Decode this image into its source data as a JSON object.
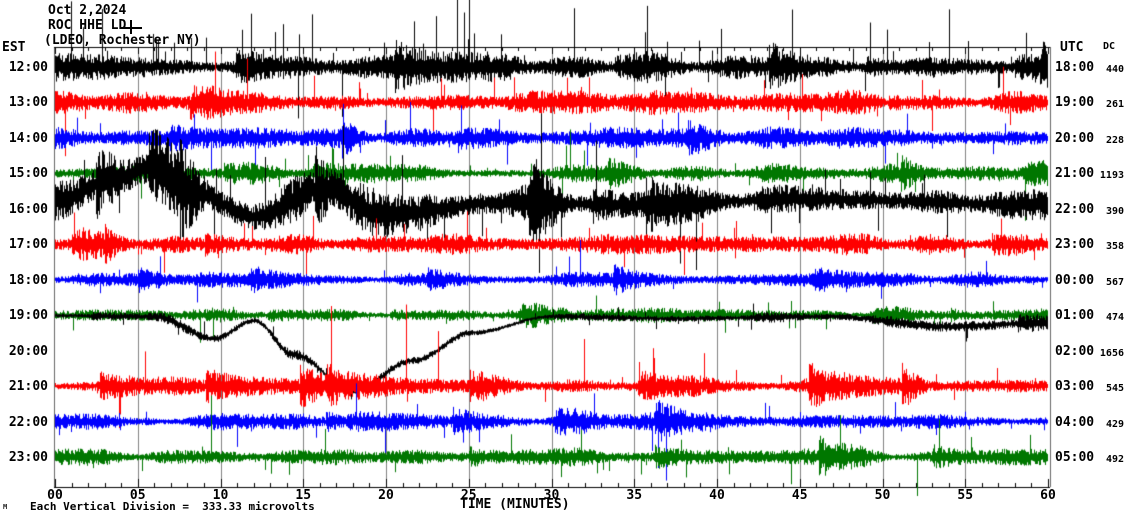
{
  "header": {
    "date": "Oct 2,2024",
    "station": "ROC HHE LD",
    "location": "(LDEO, Rochester NY)"
  },
  "axes": {
    "left_tz": "EST",
    "right_tz": "UTC",
    "dc_header": "DC",
    "x_title": "TIME (MINUTES)",
    "x_tick_labels": [
      "00",
      "05",
      "10",
      "15",
      "20",
      "25",
      "30",
      "35",
      "40",
      "45",
      "50",
      "55",
      "60"
    ],
    "footer": "Each Vertical Division =  333.33 microvolts",
    "corner_mark": "M"
  },
  "colors": {
    "black": "#000000",
    "red": "#ff0000",
    "blue": "#0000ff",
    "green": "#007700",
    "grid": "#808080",
    "axis": "#000000",
    "border": "#666666"
  },
  "rows": [
    {
      "est": "12:00",
      "utc": "18:00",
      "dc": "440",
      "color": "#000000",
      "seed": 11,
      "amp": 13,
      "burstProb": 0.005,
      "burstGain": 1.4,
      "spikeProb": 0.06,
      "spikeMult": 5,
      "upBias": 0.8,
      "drift": [
        [
          0,
          0
        ],
        [
          1,
          0
        ]
      ]
    },
    {
      "est": "13:00",
      "utc": "19:00",
      "dc": "261",
      "color": "#ff0000",
      "seed": 22,
      "amp": 11,
      "burstProb": 0.005,
      "burstGain": 1.2,
      "spikeProb": 0.035,
      "spikeMult": 3.5,
      "upBias": 0.6,
      "drift": [
        [
          0,
          0
        ],
        [
          1,
          0
        ]
      ]
    },
    {
      "est": "14:00",
      "utc": "20:00",
      "dc": "228",
      "color": "#0000ff",
      "seed": 33,
      "amp": 10,
      "burstProb": 0.004,
      "burstGain": 1.1,
      "spikeProb": 0.03,
      "spikeMult": 2.8,
      "upBias": 0.5,
      "drift": [
        [
          0,
          0
        ],
        [
          1,
          0
        ]
      ]
    },
    {
      "est": "15:00",
      "utc": "21:00",
      "dc": "1193",
      "color": "#007700",
      "seed": 44,
      "amp": 9,
      "burstProb": 0.004,
      "burstGain": 1.0,
      "spikeProb": 0.025,
      "spikeMult": 2.6,
      "upBias": 0.5,
      "drift": [
        [
          0,
          0
        ],
        [
          1,
          0
        ]
      ]
    },
    {
      "est": "16:00",
      "utc": "22:00",
      "dc": "390",
      "color": "#000000",
      "seed": 55,
      "amp": 19,
      "burstProb": 0.007,
      "burstGain": 1.7,
      "spikeProb": 0.035,
      "spikeMult": 3.2,
      "upBias": 0.5,
      "drift": [
        [
          0,
          -8
        ],
        [
          0.06,
          -30
        ],
        [
          0.1,
          -42
        ],
        [
          0.14,
          -16
        ],
        [
          0.2,
          8
        ],
        [
          0.27,
          -20
        ],
        [
          0.33,
          6
        ],
        [
          0.45,
          -6
        ],
        [
          0.6,
          -4
        ],
        [
          0.75,
          -10
        ],
        [
          1,
          -4
        ]
      ]
    },
    {
      "est": "17:00",
      "utc": "23:00",
      "dc": "358",
      "color": "#ff0000",
      "seed": 66,
      "amp": 10,
      "burstProb": 0.005,
      "burstGain": 1.2,
      "spikeProb": 0.03,
      "spikeMult": 2.8,
      "upBias": 0.5,
      "drift": [
        [
          0,
          0
        ],
        [
          1,
          0
        ]
      ]
    },
    {
      "est": "18:00",
      "utc": "00:00",
      "dc": "567",
      "color": "#0000ff",
      "seed": 77,
      "amp": 7,
      "burstProb": 0.004,
      "burstGain": 1.1,
      "spikeProb": 0.02,
      "spikeMult": 2.6,
      "upBias": 0.5,
      "drift": [
        [
          0,
          0
        ],
        [
          1,
          0
        ]
      ]
    },
    {
      "est": "19:00",
      "utc": "01:00",
      "dc": "474",
      "color": "#007700",
      "seed": 88,
      "amp": 7,
      "burstProb": 0.004,
      "burstGain": 1.0,
      "spikeProb": 0.02,
      "spikeMult": 2.6,
      "upBias": 0.45,
      "drift": [
        [
          0,
          0
        ],
        [
          1,
          0
        ]
      ]
    },
    {
      "est": "20:00",
      "utc": "02:00",
      "dc": "1656",
      "color": "#000000",
      "seed": 99,
      "amp": 5,
      "burstProb": 0.004,
      "burstGain": 1.4,
      "spikeProb": 0.03,
      "spikeMult": 3.2,
      "upBias": 0.45,
      "drift": [
        [
          0,
          -35
        ],
        [
          0.1,
          -34
        ],
        [
          0.16,
          -12
        ],
        [
          0.2,
          -30
        ],
        [
          0.24,
          4
        ],
        [
          0.3,
          40
        ],
        [
          0.36,
          10
        ],
        [
          0.42,
          -18
        ],
        [
          0.5,
          -34
        ],
        [
          0.62,
          -32
        ],
        [
          0.78,
          -34
        ],
        [
          0.9,
          -24
        ],
        [
          1,
          -28
        ]
      ]
    },
    {
      "est": "21:00",
      "utc": "03:00",
      "dc": "545",
      "color": "#ff0000",
      "seed": 110,
      "amp": 8,
      "burstProb": 0.011,
      "burstGain": 2.2,
      "spikeProb": 0.03,
      "spikeMult": 3.4,
      "upBias": 0.5,
      "drift": [
        [
          0,
          0
        ],
        [
          1,
          0
        ]
      ]
    },
    {
      "est": "22:00",
      "utc": "04:00",
      "dc": "429",
      "color": "#0000ff",
      "seed": 121,
      "amp": 8,
      "burstProb": 0.006,
      "burstGain": 1.7,
      "spikeProb": 0.03,
      "spikeMult": 3.0,
      "upBias": 0.45,
      "drift": [
        [
          0,
          0
        ],
        [
          1,
          0
        ]
      ]
    },
    {
      "est": "23:00",
      "utc": "05:00",
      "dc": "492",
      "color": "#007700",
      "seed": 132,
      "amp": 8,
      "burstProb": 0.005,
      "burstGain": 1.6,
      "spikeProb": 0.035,
      "spikeMult": 3.2,
      "upBias": 0.25,
      "drift": [
        [
          0,
          0
        ],
        [
          1,
          0
        ]
      ]
    }
  ],
  "chart_data": {
    "type": "line",
    "subtype": "helicorder-seismogram",
    "title": "ROC HHE LD (LDEO, Rochester NY) Oct 2,2024",
    "xlabel": "TIME (MINUTES)",
    "x_range_minutes": [
      0,
      60
    ],
    "x_ticks": [
      0,
      5,
      10,
      15,
      20,
      25,
      30,
      35,
      40,
      45,
      50,
      55,
      60
    ],
    "vertical_division_microvolts": 333.33,
    "left_timezone": "EST",
    "right_timezone": "UTC",
    "trace_color_cycle": [
      "#000000",
      "#ff0000",
      "#0000ff",
      "#007700"
    ],
    "grid": true,
    "lines": [
      {
        "est": "12:00",
        "utc": "18:00",
        "dc_offset": 440,
        "color": "black"
      },
      {
        "est": "13:00",
        "utc": "19:00",
        "dc_offset": 261,
        "color": "red"
      },
      {
        "est": "14:00",
        "utc": "20:00",
        "dc_offset": 228,
        "color": "blue"
      },
      {
        "est": "15:00",
        "utc": "21:00",
        "dc_offset": 1193,
        "color": "green"
      },
      {
        "est": "16:00",
        "utc": "22:00",
        "dc_offset": 390,
        "color": "black"
      },
      {
        "est": "17:00",
        "utc": "23:00",
        "dc_offset": 358,
        "color": "red"
      },
      {
        "est": "18:00",
        "utc": "00:00",
        "dc_offset": 567,
        "color": "blue"
      },
      {
        "est": "19:00",
        "utc": "01:00",
        "dc_offset": 474,
        "color": "green"
      },
      {
        "est": "20:00",
        "utc": "02:00",
        "dc_offset": 1656,
        "color": "black"
      },
      {
        "est": "21:00",
        "utc": "03:00",
        "dc_offset": 545,
        "color": "red"
      },
      {
        "est": "22:00",
        "utc": "04:00",
        "dc_offset": 429,
        "color": "blue"
      },
      {
        "est": "23:00",
        "utc": "05:00",
        "dc_offset": 492,
        "color": "green"
      }
    ]
  }
}
